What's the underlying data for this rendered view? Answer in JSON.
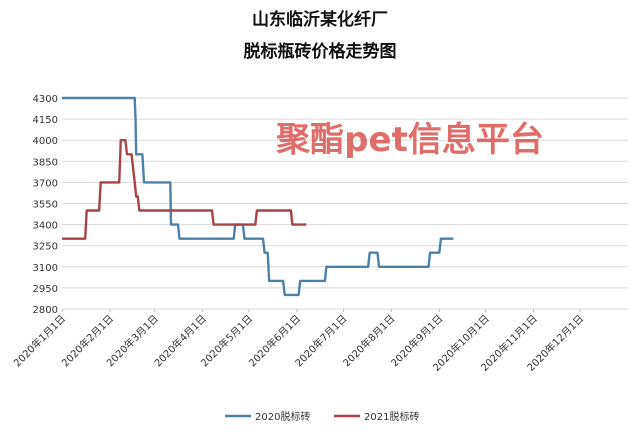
{
  "chart_data": {
    "type": "line",
    "title": [
      "山东临沂某化纤厂",
      "脱标瓶砖价格走势图"
    ],
    "watermark": "聚酯pet信息平台",
    "ylim": [
      2800,
      4300
    ],
    "yticks": [
      2800,
      2950,
      3100,
      3250,
      3400,
      3550,
      3700,
      3850,
      4000,
      4150,
      4300
    ],
    "xlim": [
      1,
      367
    ],
    "xticks": [
      {
        "day": 1,
        "label": "2020年1月1日"
      },
      {
        "day": 32,
        "label": "2020年2月1日"
      },
      {
        "day": 61,
        "label": "2020年3月1日"
      },
      {
        "day": 92,
        "label": "2020年4月1日"
      },
      {
        "day": 122,
        "label": "2020年5月1日"
      },
      {
        "day": 153,
        "label": "2020年6月1日"
      },
      {
        "day": 183,
        "label": "2020年7月1日"
      },
      {
        "day": 214,
        "label": "2020年8月1日"
      },
      {
        "day": 245,
        "label": "2020年9月1日"
      },
      {
        "day": 275,
        "label": "2020年10月1日"
      },
      {
        "day": 306,
        "label": "2020年11月1日"
      },
      {
        "day": 336,
        "label": "2020年12月1日"
      }
    ],
    "grid": true,
    "legend_position": "bottom",
    "series": [
      {
        "name": "2020脱标砖",
        "color": "#4f81a6",
        "points": [
          [
            1,
            4300
          ],
          [
            48,
            4300
          ],
          [
            48.5,
            4150
          ],
          [
            49,
            3900
          ],
          [
            53,
            3900
          ],
          [
            54,
            3700
          ],
          [
            71,
            3700
          ],
          [
            71.5,
            3400
          ],
          [
            76,
            3400
          ],
          [
            77,
            3300
          ],
          [
            112,
            3300
          ],
          [
            113,
            3400
          ],
          [
            118,
            3400
          ],
          [
            119,
            3300
          ],
          [
            131,
            3300
          ],
          [
            132,
            3200
          ],
          [
            134,
            3200
          ],
          [
            135,
            3000
          ],
          [
            144,
            3000
          ],
          [
            145,
            2900
          ],
          [
            154,
            2900
          ],
          [
            155,
            3000
          ],
          [
            171,
            3000
          ],
          [
            172,
            3100
          ],
          [
            199,
            3100
          ],
          [
            200,
            3200
          ],
          [
            205,
            3200
          ],
          [
            206,
            3100
          ],
          [
            238,
            3100
          ],
          [
            239,
            3200
          ],
          [
            245,
            3200
          ],
          [
            246,
            3300
          ],
          [
            254,
            3300
          ]
        ]
      },
      {
        "name": "2021脱标砖",
        "color": "#a84448",
        "points": [
          [
            1,
            3300
          ],
          [
            16,
            3300
          ],
          [
            17,
            3500
          ],
          [
            25,
            3500
          ],
          [
            26,
            3700
          ],
          [
            38,
            3700
          ],
          [
            39,
            4000
          ],
          [
            42,
            4000
          ],
          [
            43,
            3900
          ],
          [
            46,
            3900
          ],
          [
            47,
            3800
          ],
          [
            48,
            3700
          ],
          [
            49,
            3600
          ],
          [
            50,
            3600
          ],
          [
            51,
            3500
          ],
          [
            98,
            3500
          ],
          [
            99,
            3400
          ],
          [
            126,
            3400
          ],
          [
            127,
            3500
          ],
          [
            149,
            3500
          ],
          [
            150,
            3400
          ],
          [
            159,
            3400
          ]
        ]
      }
    ]
  }
}
